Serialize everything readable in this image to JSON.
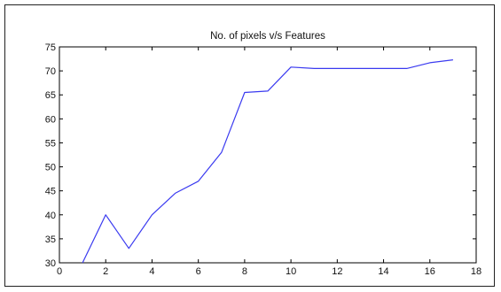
{
  "chart_data": {
    "type": "line",
    "title": "No. of pixels v/s Features",
    "xlabel": "",
    "ylabel": "",
    "xlim": [
      0,
      18
    ],
    "ylim": [
      30,
      75
    ],
    "xticks": [
      0,
      2,
      4,
      6,
      8,
      10,
      12,
      14,
      16,
      18
    ],
    "yticks": [
      30,
      35,
      40,
      45,
      50,
      55,
      60,
      65,
      70,
      75
    ],
    "grid": false,
    "series": [
      {
        "color": "#3a3af0",
        "x": [
          1,
          2,
          3,
          4,
          5,
          6,
          7,
          8,
          9,
          10,
          11,
          12,
          13,
          14,
          15,
          16,
          17
        ],
        "y": [
          30,
          40,
          33,
          40,
          44.5,
          47,
          53,
          65.5,
          65.8,
          70.8,
          70.5,
          70.5,
          70.5,
          70.5,
          70.5,
          71.7,
          72.3
        ]
      }
    ]
  }
}
